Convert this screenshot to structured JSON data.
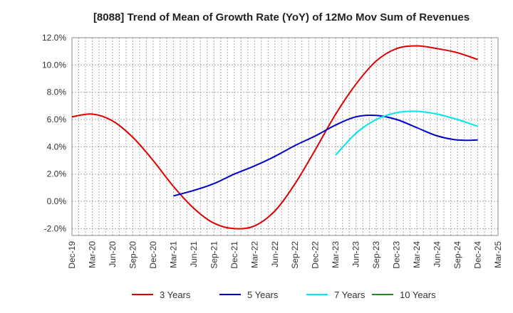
{
  "chart_data": {
    "type": "line",
    "title": "[8088]  Trend of Mean of Growth Rate (YoY) of 12Mo Mov Sum of Revenues",
    "xlabel": "",
    "ylabel": "",
    "ylim": [
      -2.5,
      12.0
    ],
    "yticks": [
      -2.0,
      0.0,
      2.0,
      4.0,
      6.0,
      8.0,
      10.0,
      12.0
    ],
    "ytick_labels": [
      "-2.0%",
      "0.0%",
      "2.0%",
      "4.0%",
      "6.0%",
      "8.0%",
      "10.0%",
      "12.0%"
    ],
    "categories": [
      "Dec-19",
      "Mar-20",
      "Jun-20",
      "Sep-20",
      "Dec-20",
      "Mar-21",
      "Jun-21",
      "Sep-21",
      "Dec-21",
      "Mar-22",
      "Jun-22",
      "Sep-22",
      "Dec-22",
      "Mar-23",
      "Jun-23",
      "Sep-23",
      "Dec-23",
      "Mar-24",
      "Jun-24",
      "Sep-24",
      "Dec-24",
      "Mar-25"
    ],
    "grid": true,
    "legend_position": "bottom",
    "series": [
      {
        "name": "3 Years",
        "color": "#dd0000",
        "values": [
          6.2,
          6.4,
          5.9,
          4.7,
          3.0,
          1.1,
          -0.5,
          -1.6,
          -2.0,
          -1.8,
          -0.7,
          1.3,
          3.8,
          6.4,
          8.6,
          10.3,
          11.2,
          11.4,
          11.2,
          10.9,
          10.4,
          null
        ]
      },
      {
        "name": "5 Years",
        "color": "#0000cc",
        "values": [
          null,
          null,
          null,
          null,
          null,
          0.4,
          0.8,
          1.3,
          2.0,
          2.6,
          3.3,
          4.1,
          4.8,
          5.6,
          6.2,
          6.3,
          6.0,
          5.4,
          4.8,
          4.5,
          4.5,
          null
        ]
      },
      {
        "name": "7 Years",
        "color": "#00e5ee",
        "values": [
          null,
          null,
          null,
          null,
          null,
          null,
          null,
          null,
          null,
          null,
          null,
          null,
          null,
          3.4,
          5.0,
          6.0,
          6.5,
          6.6,
          6.4,
          6.0,
          5.5,
          null
        ]
      },
      {
        "name": "10 Years",
        "color": "#228b22",
        "values": [
          null,
          null,
          null,
          null,
          null,
          null,
          null,
          null,
          null,
          null,
          null,
          null,
          null,
          null,
          null,
          null,
          null,
          null,
          null,
          null,
          null,
          null
        ]
      }
    ]
  }
}
